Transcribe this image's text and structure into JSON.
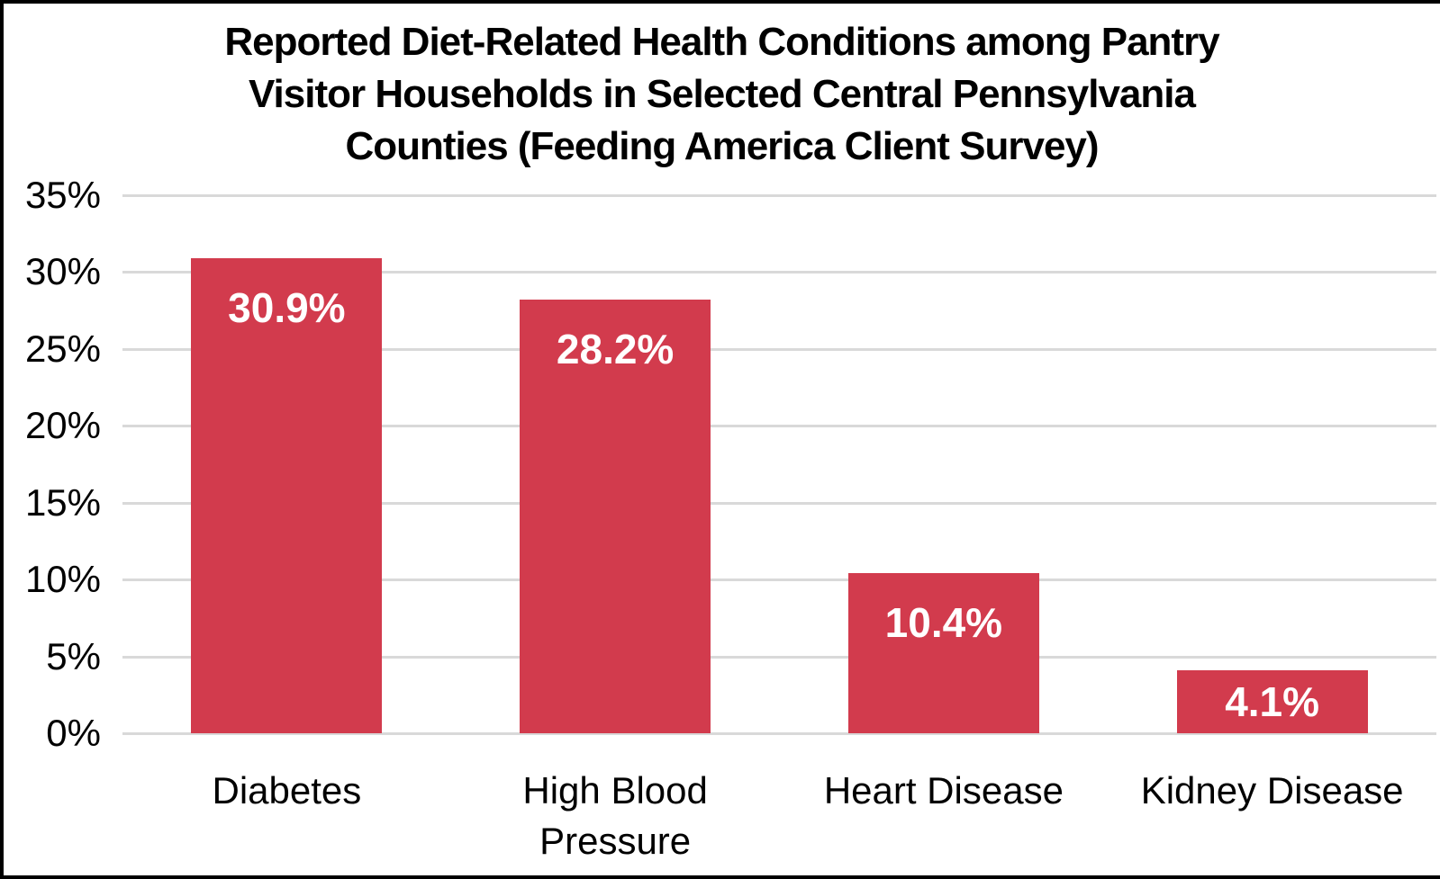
{
  "chart_data": {
    "type": "bar",
    "title": "Reported Diet-Related Health Conditions among Pantry Visitor Households in Selected Central Pennsylvania Counties (Feeding America Client Survey)",
    "title_lines": [
      "Reported Diet-Related Health Conditions among Pantry",
      "Visitor Households in Selected Central Pennsylvania",
      "Counties (Feeding America Client Survey)"
    ],
    "categories": [
      "Diabetes",
      "High Blood Pressure",
      "Heart Disease",
      "Kidney Disease"
    ],
    "values": [
      30.9,
      28.2,
      10.4,
      4.1
    ],
    "value_labels": [
      "30.9%",
      "28.2%",
      "10.4%",
      "4.1%"
    ],
    "xlabel": "",
    "ylabel": "",
    "ylim": [
      0,
      35
    ],
    "ytick_step": 5,
    "yticks": [
      {
        "label": "35%",
        "value": 35
      },
      {
        "label": "30%",
        "value": 30
      },
      {
        "label": "25%",
        "value": 25
      },
      {
        "label": "20%",
        "value": 20
      },
      {
        "label": "15%",
        "value": 15
      },
      {
        "label": "10%",
        "value": 10
      },
      {
        "label": "5%",
        "value": 5
      },
      {
        "label": "0%",
        "value": 0
      }
    ],
    "grid": "horizontal",
    "legend": "none",
    "colors": {
      "bar": "#d23b4d",
      "gridline": "#d9d9d9",
      "value_label": "#ffffff",
      "text": "#000000",
      "background": "#ffffff",
      "frame_border": "#000000"
    }
  }
}
